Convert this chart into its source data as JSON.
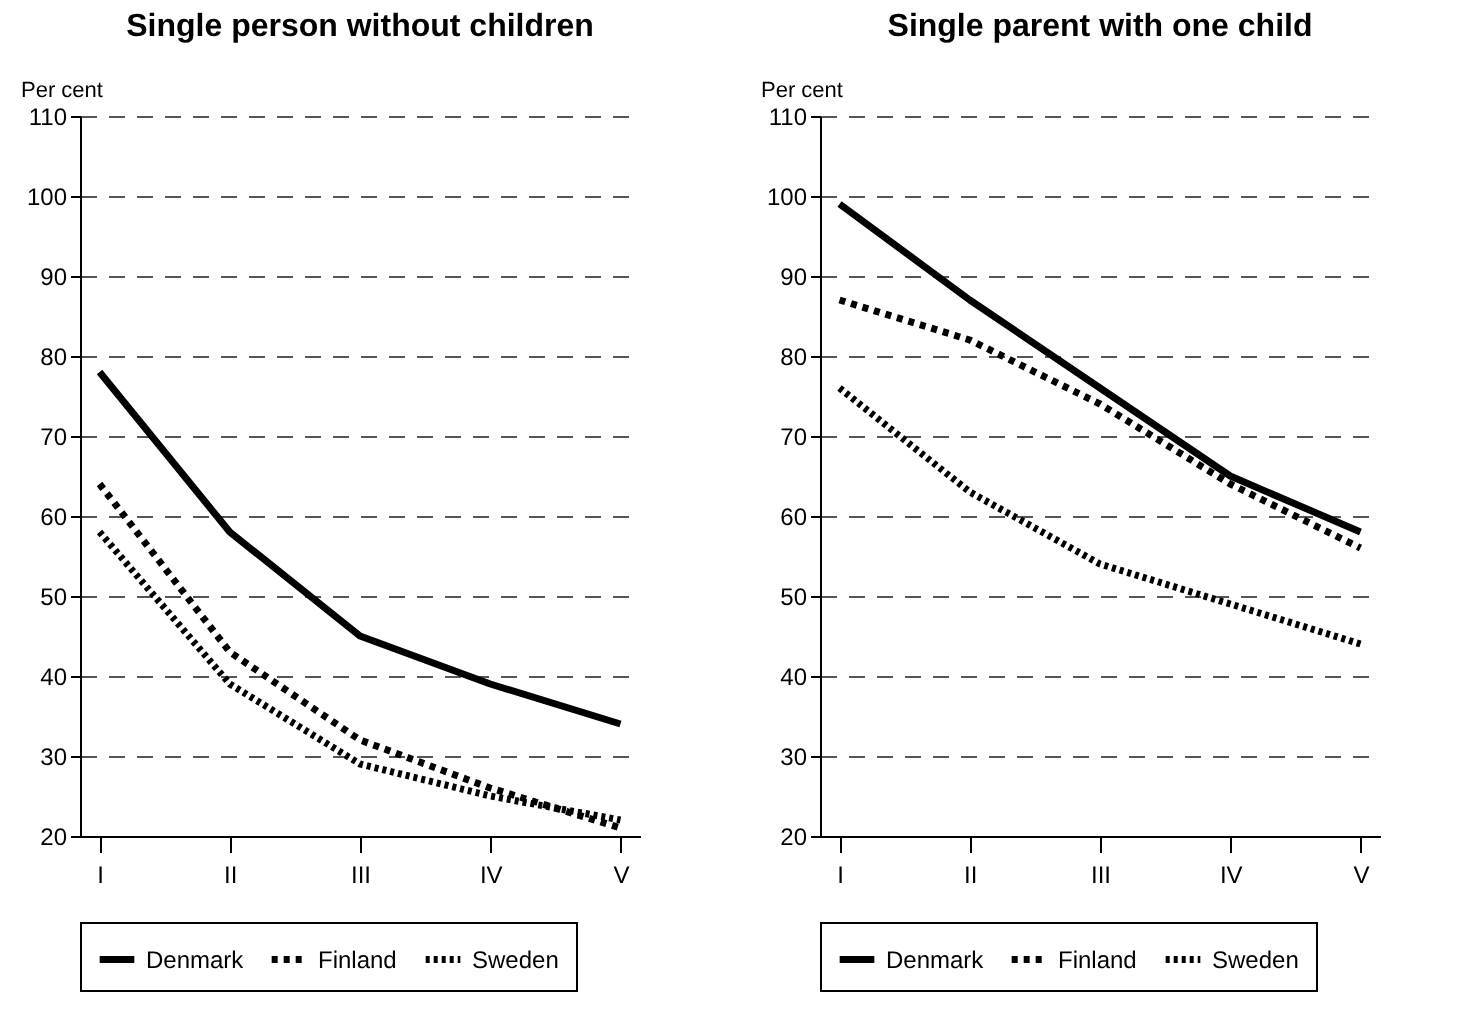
{
  "chart_data": [
    {
      "type": "line",
      "title": "Single person without children",
      "ylabel": "Per cent",
      "categories": [
        "I",
        "II",
        "III",
        "IV",
        "V"
      ],
      "ylim": [
        20,
        110
      ],
      "yticks": [
        20,
        30,
        40,
        50,
        60,
        70,
        80,
        90,
        100,
        110
      ],
      "grid": "y",
      "legend": "bottom",
      "series": [
        {
          "name": "Denmark",
          "color": "#000000",
          "line_style": "solid",
          "values": [
            78,
            58,
            45,
            39,
            34
          ]
        },
        {
          "name": "Finland",
          "color": "#000000",
          "line_style": "dashed",
          "values": [
            64,
            43,
            32,
            26,
            21
          ]
        },
        {
          "name": "Sweden",
          "color": "#000000",
          "line_style": "dotted",
          "values": [
            58,
            39,
            29,
            25,
            22
          ]
        }
      ]
    },
    {
      "type": "line",
      "title": "Single parent with one child",
      "ylabel": "Per cent",
      "categories": [
        "I",
        "II",
        "III",
        "IV",
        "V"
      ],
      "ylim": [
        20,
        110
      ],
      "yticks": [
        20,
        30,
        40,
        50,
        60,
        70,
        80,
        90,
        100,
        110
      ],
      "grid": "y",
      "legend": "bottom",
      "series": [
        {
          "name": "Denmark",
          "color": "#000000",
          "line_style": "solid",
          "values": [
            99,
            87,
            76,
            65,
            58
          ]
        },
        {
          "name": "Finland",
          "color": "#000000",
          "line_style": "dashed",
          "values": [
            87,
            82,
            74,
            64,
            56
          ]
        },
        {
          "name": "Sweden",
          "color": "#000000",
          "line_style": "dotted",
          "values": [
            76,
            63,
            54,
            49,
            44
          ]
        }
      ]
    }
  ]
}
